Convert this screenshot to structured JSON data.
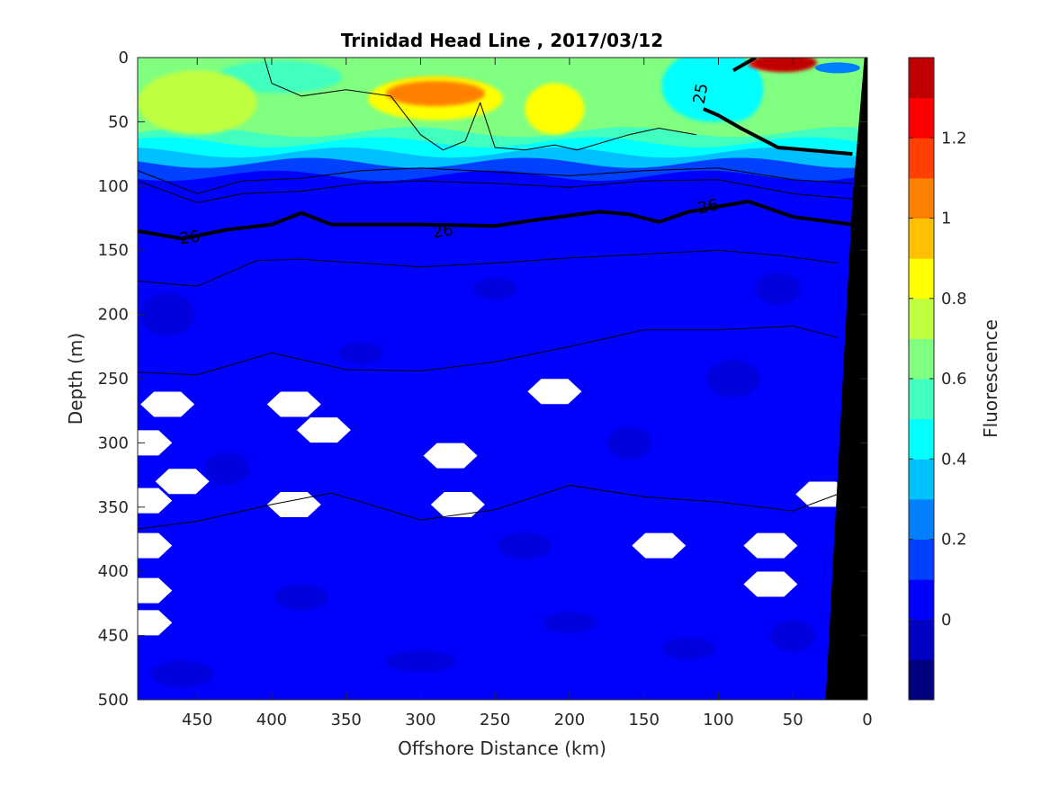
{
  "chart_data": {
    "type": "heatmap",
    "title": "Trinidad Head Line , 2017/03/12",
    "xlabel": "Offshore Distance (km)",
    "ylabel": "Depth (m)",
    "colorbar_label": "Fluorescence",
    "xlim": [
      490,
      0
    ],
    "ylim": [
      500,
      0
    ],
    "x_ticks": [
      450,
      400,
      350,
      300,
      250,
      200,
      150,
      100,
      50,
      0
    ],
    "y_ticks": [
      0,
      50,
      100,
      150,
      200,
      250,
      300,
      350,
      400,
      450,
      500
    ],
    "colorbar": {
      "range": [
        -0.2,
        1.4
      ],
      "ticks": [
        0,
        0.2,
        0.4,
        0.6,
        0.8,
        1,
        1.2
      ],
      "tick_labels": [
        "0",
        "0.2",
        "0.4",
        "0.6",
        "0.8",
        "1",
        "1.2"
      ],
      "colors": [
        "#000080",
        "#0000c0",
        "#0000ff",
        "#0040ff",
        "#0080ff",
        "#00c0ff",
        "#00ffff",
        "#40ffbf",
        "#80ff80",
        "#bfff40",
        "#ffff00",
        "#ffc000",
        "#ff8000",
        "#ff4000",
        "#ff0000",
        "#c00000"
      ]
    },
    "surface_layer": {
      "depth_range_m": [
        0,
        90
      ],
      "features": [
        {
          "x_range_km": [
            490,
            410
          ],
          "depth_m": [
            10,
            60
          ],
          "value": 0.7
        },
        {
          "x_range_km": [
            330,
            250
          ],
          "depth_m": [
            15,
            45
          ],
          "value": 0.95
        },
        {
          "x_range_km": [
            230,
            190
          ],
          "depth_m": [
            20,
            60
          ],
          "value": 0.85
        },
        {
          "x_range_km": [
            110,
            70
          ],
          "depth_m": [
            0,
            50
          ],
          "value": 0.4
        },
        {
          "x_range_km": [
            80,
            40
          ],
          "depth_m": [
            0,
            10
          ],
          "value": 1.25
        }
      ]
    },
    "deep_layer_value": 0.05,
    "missing_data_patches": [
      {
        "x_km": 470,
        "depth_m": 270
      },
      {
        "x_km": 385,
        "depth_m": 270
      },
      {
        "x_km": 365,
        "depth_m": 290
      },
      {
        "x_km": 280,
        "depth_m": 310
      },
      {
        "x_km": 210,
        "depth_m": 260
      },
      {
        "x_km": 275,
        "depth_m": 348
      },
      {
        "x_km": 460,
        "depth_m": 330
      },
      {
        "x_km": 385,
        "depth_m": 348
      },
      {
        "x_km": 140,
        "depth_m": 380
      },
      {
        "x_km": 65,
        "depth_m": 380
      },
      {
        "x_km": 65,
        "depth_m": 410
      },
      {
        "x_km": 30,
        "depth_m": 340
      },
      {
        "x_km": 485,
        "depth_m": 300
      },
      {
        "x_km": 485,
        "depth_m": 345
      },
      {
        "x_km": 485,
        "depth_m": 380
      },
      {
        "x_km": 485,
        "depth_m": 415
      },
      {
        "x_km": 485,
        "depth_m": 440
      }
    ],
    "contours": [
      {
        "name": "25",
        "label": "25",
        "bold": true,
        "points": [
          [
            90,
            10
          ],
          [
            75,
            0
          ]
        ],
        "points2": [
          [
            110,
            40
          ],
          [
            100,
            45
          ],
          [
            85,
            55
          ],
          [
            60,
            70
          ],
          [
            30,
            73
          ],
          [
            10,
            75
          ]
        ]
      },
      {
        "name": "26",
        "label": "26",
        "bold": true,
        "points": [
          [
            490,
            135
          ],
          [
            460,
            141
          ],
          [
            430,
            134
          ],
          [
            400,
            130
          ],
          [
            380,
            121
          ],
          [
            360,
            130
          ],
          [
            300,
            130
          ],
          [
            250,
            131
          ],
          [
            220,
            126
          ],
          [
            180,
            120
          ],
          [
            160,
            122
          ],
          [
            140,
            128
          ],
          [
            120,
            120
          ],
          [
            100,
            116
          ],
          [
            80,
            112
          ],
          [
            50,
            124
          ],
          [
            10,
            130
          ]
        ]
      },
      {
        "name": "thin-1",
        "bold": false,
        "points": [
          [
            490,
            88
          ],
          [
            450,
            106
          ],
          [
            420,
            96
          ],
          [
            380,
            94
          ],
          [
            340,
            88
          ],
          [
            300,
            86
          ],
          [
            250,
            89
          ],
          [
            200,
            92
          ],
          [
            150,
            88
          ],
          [
            100,
            86
          ],
          [
            50,
            95
          ],
          [
            10,
            98
          ]
        ]
      },
      {
        "name": "thin-2",
        "bold": false,
        "points": [
          [
            490,
            96
          ],
          [
            450,
            113
          ],
          [
            420,
            106
          ],
          [
            380,
            104
          ],
          [
            340,
            98
          ],
          [
            300,
            96
          ],
          [
            250,
            98
          ],
          [
            200,
            101
          ],
          [
            150,
            96
          ],
          [
            100,
            95
          ],
          [
            50,
            106
          ],
          [
            10,
            110
          ]
        ]
      },
      {
        "name": "thin-3",
        "bold": false,
        "points": [
          [
            490,
            174
          ],
          [
            450,
            178
          ],
          [
            410,
            158
          ],
          [
            380,
            157
          ],
          [
            300,
            163
          ],
          [
            250,
            160
          ],
          [
            200,
            156
          ],
          [
            150,
            153
          ],
          [
            100,
            150
          ],
          [
            60,
            154
          ],
          [
            20,
            160
          ]
        ]
      },
      {
        "name": "thin-4",
        "bold": false,
        "points": [
          [
            490,
            245
          ],
          [
            450,
            247
          ],
          [
            400,
            230
          ],
          [
            350,
            243
          ],
          [
            300,
            244
          ],
          [
            250,
            237
          ],
          [
            200,
            225
          ],
          [
            150,
            212
          ],
          [
            100,
            212
          ],
          [
            50,
            209
          ],
          [
            20,
            218
          ]
        ]
      },
      {
        "name": "thin-5",
        "bold": false,
        "points": [
          [
            490,
            367
          ],
          [
            450,
            361
          ],
          [
            400,
            348
          ],
          [
            360,
            339
          ],
          [
            300,
            360
          ],
          [
            250,
            352
          ],
          [
            200,
            333
          ],
          [
            150,
            342
          ],
          [
            100,
            346
          ],
          [
            50,
            353
          ],
          [
            20,
            340
          ]
        ]
      },
      {
        "name": "thin-surface-1",
        "bold": false,
        "points": [
          [
            405,
            0
          ],
          [
            400,
            20
          ],
          [
            380,
            30
          ],
          [
            350,
            25
          ],
          [
            320,
            30
          ],
          [
            300,
            60
          ],
          [
            285,
            72
          ],
          [
            270,
            65
          ],
          [
            260,
            35
          ]
        ]
      },
      {
        "name": "thin-surface-2",
        "bold": false,
        "points": [
          [
            260,
            35
          ],
          [
            250,
            70
          ],
          [
            230,
            72
          ],
          [
            210,
            68
          ],
          [
            195,
            72
          ],
          [
            160,
            60
          ],
          [
            140,
            55
          ],
          [
            115,
            60
          ]
        ]
      }
    ],
    "contour_label_positions": [
      {
        "text": "26",
        "x_km": 455,
        "depth_m": 140
      },
      {
        "text": "26",
        "x_km": 285,
        "depth_m": 135
      },
      {
        "text": "25",
        "x_km": 112,
        "depth_m": 28
      },
      {
        "text": "26",
        "x_km": 107,
        "depth_m": 116
      }
    ]
  }
}
